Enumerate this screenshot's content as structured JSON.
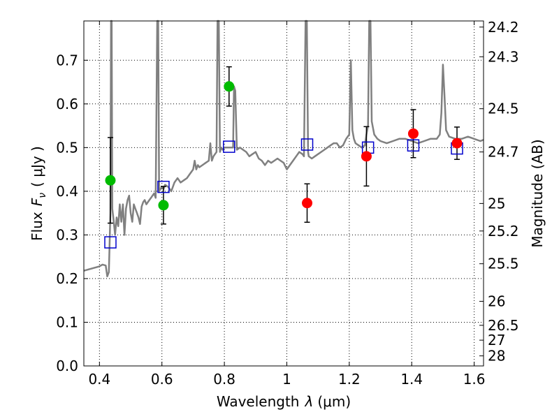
{
  "chart_data": {
    "type": "scatter",
    "xlabel_prefix": "Wavelength",
    "xlabel_symbol": "λ",
    "xlabel_unit": "(μm)",
    "ylabel_prefix": "Flux",
    "ylabel_symbol": "F",
    "ylabel_subscript": "ν",
    "ylabel_unit": "( μJy )",
    "y2label": "Magnitude (AB)",
    "xlim": [
      0.35,
      1.63
    ],
    "ylim": [
      0.0,
      0.79
    ],
    "xticks": [
      0.4,
      0.6,
      0.8,
      1.0,
      1.2,
      1.4,
      1.6
    ],
    "xtick_labels": [
      "0.4",
      "0.6",
      "0.8",
      "1",
      "1.2",
      "1.4",
      "1.6"
    ],
    "yticks": [
      0.0,
      0.1,
      0.2,
      0.3,
      0.4,
      0.5,
      0.6,
      0.7
    ],
    "ytick_labels": [
      "0.0",
      "0.1",
      "0.2",
      "0.3",
      "0.4",
      "0.5",
      "0.6",
      "0.7"
    ],
    "y2_ticks": [
      {
        "mag": "24.2",
        "flux": 0.776
      },
      {
        "mag": "24.3",
        "flux": 0.708
      },
      {
        "mag": "24.5",
        "flux": 0.589
      },
      {
        "mag": "24.7",
        "flux": 0.49
      },
      {
        "mag": "25",
        "flux": 0.372
      },
      {
        "mag": "25.2",
        "flux": 0.309
      },
      {
        "mag": "25.5",
        "flux": 0.234
      },
      {
        "mag": "26",
        "flux": 0.148
      },
      {
        "mag": "26.5",
        "flux": 0.093
      },
      {
        "mag": "27",
        "flux": 0.059
      },
      {
        "mag": "28",
        "flux": 0.023
      }
    ],
    "grid": true,
    "colors": {
      "spectrum": "#808080",
      "green_points": "#00bb00",
      "red_points": "#ff0000",
      "model_squares": "#0000cc",
      "error_bars": "#000000",
      "grid": "#000000"
    },
    "spectrum": [
      [
        0.35,
        0.218
      ],
      [
        0.36,
        0.22
      ],
      [
        0.37,
        0.222
      ],
      [
        0.38,
        0.224
      ],
      [
        0.39,
        0.226
      ],
      [
        0.4,
        0.228
      ],
      [
        0.41,
        0.232
      ],
      [
        0.42,
        0.23
      ],
      [
        0.425,
        0.205
      ],
      [
        0.43,
        0.215
      ],
      [
        0.435,
        0.35
      ],
      [
        0.437,
        0.79
      ],
      [
        0.439,
        0.79
      ],
      [
        0.441,
        0.36
      ],
      [
        0.445,
        0.335
      ],
      [
        0.45,
        0.3
      ],
      [
        0.455,
        0.34
      ],
      [
        0.46,
        0.32
      ],
      [
        0.465,
        0.37
      ],
      [
        0.47,
        0.33
      ],
      [
        0.475,
        0.37
      ],
      [
        0.48,
        0.3
      ],
      [
        0.485,
        0.36
      ],
      [
        0.49,
        0.38
      ],
      [
        0.495,
        0.39
      ],
      [
        0.5,
        0.35
      ],
      [
        0.505,
        0.33
      ],
      [
        0.51,
        0.37
      ],
      [
        0.515,
        0.36
      ],
      [
        0.52,
        0.35
      ],
      [
        0.525,
        0.34
      ],
      [
        0.53,
        0.325
      ],
      [
        0.535,
        0.365
      ],
      [
        0.54,
        0.375
      ],
      [
        0.545,
        0.38
      ],
      [
        0.55,
        0.37
      ],
      [
        0.555,
        0.375
      ],
      [
        0.56,
        0.38
      ],
      [
        0.565,
        0.385
      ],
      [
        0.57,
        0.39
      ],
      [
        0.575,
        0.395
      ],
      [
        0.58,
        0.385
      ],
      [
        0.585,
        0.79
      ],
      [
        0.588,
        0.79
      ],
      [
        0.591,
        0.4
      ],
      [
        0.595,
        0.405
      ],
      [
        0.6,
        0.41
      ],
      [
        0.605,
        0.405
      ],
      [
        0.61,
        0.415
      ],
      [
        0.62,
        0.41
      ],
      [
        0.63,
        0.4
      ],
      [
        0.64,
        0.42
      ],
      [
        0.65,
        0.43
      ],
      [
        0.66,
        0.42
      ],
      [
        0.67,
        0.425
      ],
      [
        0.68,
        0.43
      ],
      [
        0.69,
        0.44
      ],
      [
        0.7,
        0.45
      ],
      [
        0.705,
        0.47
      ],
      [
        0.71,
        0.45
      ],
      [
        0.715,
        0.46
      ],
      [
        0.72,
        0.455
      ],
      [
        0.73,
        0.46
      ],
      [
        0.74,
        0.465
      ],
      [
        0.75,
        0.47
      ],
      [
        0.755,
        0.51
      ],
      [
        0.76,
        0.47
      ],
      [
        0.765,
        0.48
      ],
      [
        0.77,
        0.485
      ],
      [
        0.775,
        0.49
      ],
      [
        0.778,
        0.79
      ],
      [
        0.782,
        0.79
      ],
      [
        0.786,
        0.49
      ],
      [
        0.79,
        0.5
      ],
      [
        0.795,
        0.495
      ],
      [
        0.8,
        0.5
      ],
      [
        0.81,
        0.5
      ],
      [
        0.82,
        0.5
      ],
      [
        0.828,
        0.5
      ],
      [
        0.831,
        0.64
      ],
      [
        0.835,
        0.63
      ],
      [
        0.84,
        0.495
      ],
      [
        0.85,
        0.5
      ],
      [
        0.86,
        0.495
      ],
      [
        0.87,
        0.49
      ],
      [
        0.88,
        0.48
      ],
      [
        0.89,
        0.485
      ],
      [
        0.9,
        0.49
      ],
      [
        0.91,
        0.475
      ],
      [
        0.92,
        0.47
      ],
      [
        0.93,
        0.46
      ],
      [
        0.94,
        0.47
      ],
      [
        0.95,
        0.465
      ],
      [
        0.96,
        0.47
      ],
      [
        0.97,
        0.475
      ],
      [
        0.98,
        0.47
      ],
      [
        0.99,
        0.465
      ],
      [
        1.0,
        0.45
      ],
      [
        1.01,
        0.46
      ],
      [
        1.02,
        0.47
      ],
      [
        1.03,
        0.48
      ],
      [
        1.04,
        0.49
      ],
      [
        1.05,
        0.485
      ],
      [
        1.055,
        0.48
      ],
      [
        1.06,
        0.79
      ],
      [
        1.064,
        0.79
      ],
      [
        1.068,
        0.49
      ],
      [
        1.07,
        0.48
      ],
      [
        1.08,
        0.475
      ],
      [
        1.09,
        0.48
      ],
      [
        1.1,
        0.485
      ],
      [
        1.11,
        0.49
      ],
      [
        1.12,
        0.495
      ],
      [
        1.13,
        0.5
      ],
      [
        1.14,
        0.505
      ],
      [
        1.15,
        0.51
      ],
      [
        1.16,
        0.51
      ],
      [
        1.17,
        0.5
      ],
      [
        1.18,
        0.505
      ],
      [
        1.19,
        0.52
      ],
      [
        1.2,
        0.53
      ],
      [
        1.205,
        0.7
      ],
      [
        1.21,
        0.54
      ],
      [
        1.215,
        0.52
      ],
      [
        1.22,
        0.51
      ],
      [
        1.23,
        0.505
      ],
      [
        1.24,
        0.5
      ],
      [
        1.25,
        0.505
      ],
      [
        1.255,
        0.53
      ],
      [
        1.26,
        0.55
      ],
      [
        1.264,
        0.79
      ],
      [
        1.268,
        0.79
      ],
      [
        1.272,
        0.56
      ],
      [
        1.28,
        0.53
      ],
      [
        1.29,
        0.52
      ],
      [
        1.3,
        0.515
      ],
      [
        1.32,
        0.51
      ],
      [
        1.34,
        0.515
      ],
      [
        1.36,
        0.52
      ],
      [
        1.38,
        0.52
      ],
      [
        1.4,
        0.515
      ],
      [
        1.42,
        0.51
      ],
      [
        1.44,
        0.515
      ],
      [
        1.46,
        0.52
      ],
      [
        1.48,
        0.52
      ],
      [
        1.49,
        0.53
      ],
      [
        1.495,
        0.58
      ],
      [
        1.5,
        0.69
      ],
      [
        1.505,
        0.62
      ],
      [
        1.51,
        0.54
      ],
      [
        1.52,
        0.525
      ],
      [
        1.54,
        0.52
      ],
      [
        1.56,
        0.52
      ],
      [
        1.58,
        0.525
      ],
      [
        1.6,
        0.52
      ],
      [
        1.62,
        0.515
      ],
      [
        1.63,
        0.518
      ]
    ],
    "green_points": [
      {
        "x": 0.435,
        "y": 0.425,
        "err_lo": 0.098,
        "err_hi": 0.098
      },
      {
        "x": 0.605,
        "y": 0.368,
        "err_lo": 0.043,
        "err_hi": 0.043
      },
      {
        "x": 0.815,
        "y": 0.64,
        "err_lo": 0.045,
        "err_hi": 0.045
      }
    ],
    "red_points": [
      {
        "x": 1.065,
        "y": 0.373,
        "err_lo": 0.044,
        "err_hi": 0.044
      },
      {
        "x": 1.255,
        "y": 0.48,
        "err_lo": 0.068,
        "err_hi": 0.068
      },
      {
        "x": 1.405,
        "y": 0.532,
        "err_lo": 0.055,
        "err_hi": 0.055
      },
      {
        "x": 1.545,
        "y": 0.51,
        "err_lo": 0.037,
        "err_hi": 0.037
      }
    ],
    "model_squares": [
      {
        "x": 0.435,
        "y": 0.283
      },
      {
        "x": 0.605,
        "y": 0.41
      },
      {
        "x": 0.815,
        "y": 0.502
      },
      {
        "x": 1.065,
        "y": 0.507
      },
      {
        "x": 1.26,
        "y": 0.5
      },
      {
        "x": 1.405,
        "y": 0.505
      },
      {
        "x": 1.545,
        "y": 0.498
      }
    ]
  }
}
